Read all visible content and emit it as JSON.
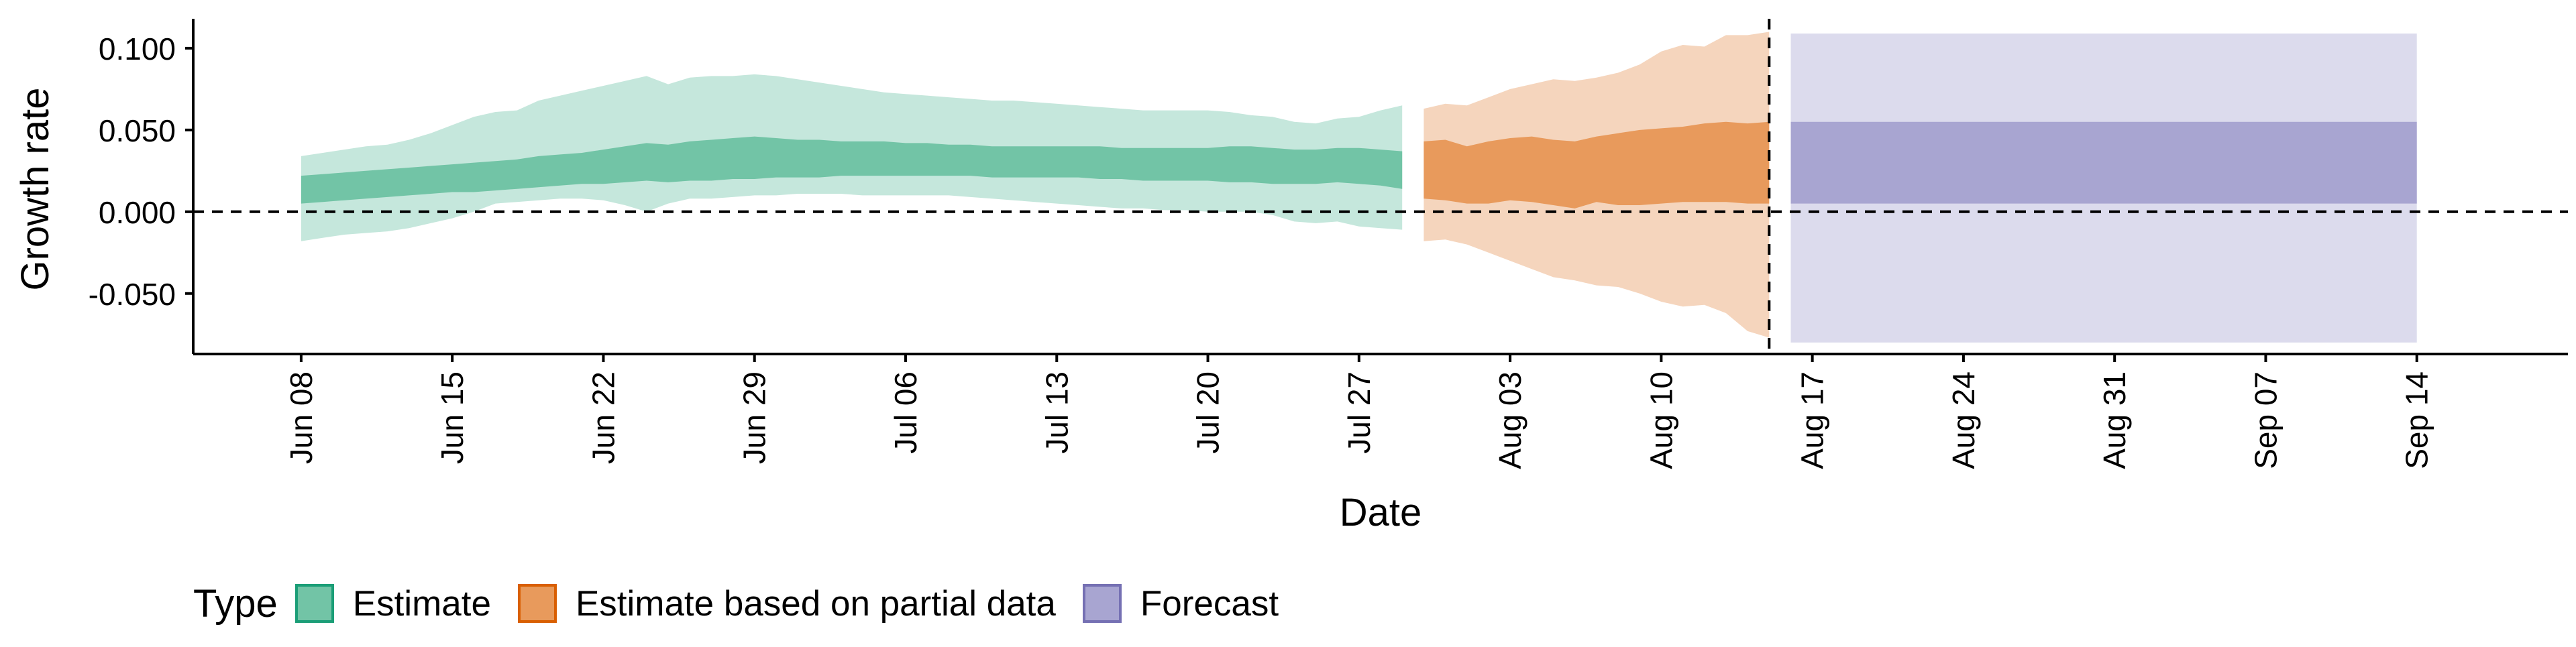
{
  "chart_data": {
    "type": "area",
    "xlabel": "Date",
    "ylabel": "Growth rate",
    "x_tick_labels": [
      "Jun 08",
      "Jun 15",
      "Jun 22",
      "Jun 29",
      "Jul 06",
      "Jul 13",
      "Jul 20",
      "Jul 27",
      "Aug 03",
      "Aug 10",
      "Aug 17",
      "Aug 24",
      "Aug 31",
      "Sep 07",
      "Sep 14"
    ],
    "x_tick_dates": [
      "2020-06-08",
      "2020-06-15",
      "2020-06-22",
      "2020-06-29",
      "2020-07-06",
      "2020-07-13",
      "2020-07-20",
      "2020-07-27",
      "2020-08-03",
      "2020-08-10",
      "2020-08-17",
      "2020-08-24",
      "2020-08-31",
      "2020-09-07",
      "2020-09-14"
    ],
    "y_tick_labels": [
      "-0.050",
      "0.000",
      "0.050",
      "0.100"
    ],
    "y_ticks": [
      -0.05,
      0.0,
      0.05,
      0.1
    ],
    "xlim": [
      "2020-06-03",
      "2020-09-21"
    ],
    "ylim": [
      -0.087,
      0.118
    ],
    "reference_lines": {
      "horizontal_y": 0.0,
      "vertical_date": "2020-08-15",
      "style": "dashed"
    },
    "legend": {
      "title": "Type",
      "position": "bottom",
      "items": [
        {
          "label": "Estimate",
          "fill": "#72c4a6",
          "border": "#1b9e77"
        },
        {
          "label": "Estimate based on partial data",
          "fill": "#e89a5c",
          "border": "#d95f02"
        },
        {
          "label": "Forecast",
          "fill": "#a8a5d1",
          "border": "#7570b3"
        }
      ]
    },
    "series": [
      {
        "name": "Estimate",
        "outer_color": "#c5e7dc",
        "inner_color": "#72c4a6",
        "dates": [
          "2020-06-08",
          "2020-06-09",
          "2020-06-10",
          "2020-06-11",
          "2020-06-12",
          "2020-06-13",
          "2020-06-14",
          "2020-06-15",
          "2020-06-16",
          "2020-06-17",
          "2020-06-18",
          "2020-06-19",
          "2020-06-20",
          "2020-06-21",
          "2020-06-22",
          "2020-06-23",
          "2020-06-24",
          "2020-06-25",
          "2020-06-26",
          "2020-06-27",
          "2020-06-28",
          "2020-06-29",
          "2020-06-30",
          "2020-07-01",
          "2020-07-02",
          "2020-07-03",
          "2020-07-04",
          "2020-07-05",
          "2020-07-06",
          "2020-07-07",
          "2020-07-08",
          "2020-07-09",
          "2020-07-10",
          "2020-07-11",
          "2020-07-12",
          "2020-07-13",
          "2020-07-14",
          "2020-07-15",
          "2020-07-16",
          "2020-07-17",
          "2020-07-18",
          "2020-07-19",
          "2020-07-20",
          "2020-07-21",
          "2020-07-22",
          "2020-07-23",
          "2020-07-24",
          "2020-07-25",
          "2020-07-26",
          "2020-07-27",
          "2020-07-28",
          "2020-07-29"
        ],
        "lower_90": [
          -0.018,
          -0.016,
          -0.014,
          -0.013,
          -0.012,
          -0.01,
          -0.007,
          -0.004,
          0.0,
          0.005,
          0.006,
          0.007,
          0.008,
          0.008,
          0.007,
          0.004,
          0.0,
          0.005,
          0.008,
          0.008,
          0.009,
          0.01,
          0.01,
          0.011,
          0.011,
          0.011,
          0.01,
          0.01,
          0.01,
          0.01,
          0.01,
          0.009,
          0.008,
          0.007,
          0.006,
          0.005,
          0.004,
          0.003,
          0.002,
          0.002,
          0.001,
          0.001,
          0.0,
          0.0,
          0.0,
          -0.002,
          -0.006,
          -0.007,
          -0.006,
          -0.009,
          -0.01,
          -0.011
        ],
        "upper_90": [
          0.034,
          0.036,
          0.038,
          0.04,
          0.041,
          0.044,
          0.048,
          0.053,
          0.058,
          0.061,
          0.062,
          0.068,
          0.071,
          0.074,
          0.077,
          0.08,
          0.083,
          0.078,
          0.082,
          0.083,
          0.083,
          0.084,
          0.083,
          0.081,
          0.079,
          0.077,
          0.075,
          0.073,
          0.072,
          0.071,
          0.07,
          0.069,
          0.068,
          0.068,
          0.067,
          0.066,
          0.065,
          0.064,
          0.063,
          0.062,
          0.062,
          0.062,
          0.062,
          0.061,
          0.059,
          0.058,
          0.055,
          0.054,
          0.057,
          0.058,
          0.062,
          0.065
        ],
        "lower_50": [
          0.005,
          0.006,
          0.007,
          0.008,
          0.009,
          0.01,
          0.011,
          0.012,
          0.012,
          0.013,
          0.014,
          0.015,
          0.016,
          0.017,
          0.017,
          0.018,
          0.019,
          0.018,
          0.019,
          0.019,
          0.02,
          0.02,
          0.021,
          0.021,
          0.021,
          0.022,
          0.022,
          0.022,
          0.022,
          0.022,
          0.022,
          0.022,
          0.021,
          0.021,
          0.021,
          0.021,
          0.021,
          0.02,
          0.02,
          0.019,
          0.019,
          0.019,
          0.019,
          0.018,
          0.018,
          0.017,
          0.017,
          0.017,
          0.018,
          0.017,
          0.016,
          0.014
        ],
        "upper_50": [
          0.022,
          0.023,
          0.024,
          0.025,
          0.026,
          0.027,
          0.028,
          0.029,
          0.03,
          0.031,
          0.032,
          0.034,
          0.035,
          0.036,
          0.038,
          0.04,
          0.042,
          0.041,
          0.043,
          0.044,
          0.045,
          0.046,
          0.045,
          0.044,
          0.044,
          0.043,
          0.043,
          0.043,
          0.042,
          0.042,
          0.041,
          0.041,
          0.04,
          0.04,
          0.04,
          0.04,
          0.04,
          0.04,
          0.039,
          0.039,
          0.039,
          0.039,
          0.039,
          0.04,
          0.04,
          0.039,
          0.038,
          0.038,
          0.039,
          0.039,
          0.038,
          0.037
        ]
      },
      {
        "name": "Estimate based on partial data",
        "outer_color": "#f5d5bd",
        "inner_color": "#e89a5c",
        "dates": [
          "2020-07-30",
          "2020-07-31",
          "2020-08-01",
          "2020-08-02",
          "2020-08-03",
          "2020-08-04",
          "2020-08-05",
          "2020-08-06",
          "2020-08-07",
          "2020-08-08",
          "2020-08-09",
          "2020-08-10",
          "2020-08-11",
          "2020-08-12",
          "2020-08-13",
          "2020-08-14",
          "2020-08-15"
        ],
        "lower_90": [
          -0.018,
          -0.017,
          -0.02,
          -0.025,
          -0.03,
          -0.035,
          -0.04,
          -0.042,
          -0.045,
          -0.046,
          -0.05,
          -0.055,
          -0.058,
          -0.057,
          -0.062,
          -0.073,
          -0.077
        ],
        "upper_90": [
          0.063,
          0.066,
          0.065,
          0.07,
          0.075,
          0.078,
          0.081,
          0.08,
          0.082,
          0.085,
          0.09,
          0.098,
          0.102,
          0.101,
          0.108,
          0.108,
          0.11
        ],
        "lower_50": [
          0.008,
          0.007,
          0.005,
          0.005,
          0.007,
          0.006,
          0.004,
          0.002,
          0.006,
          0.004,
          0.004,
          0.005,
          0.006,
          0.006,
          0.006,
          0.005,
          0.005
        ],
        "upper_50": [
          0.043,
          0.044,
          0.04,
          0.043,
          0.045,
          0.046,
          0.044,
          0.043,
          0.046,
          0.048,
          0.05,
          0.051,
          0.052,
          0.054,
          0.055,
          0.054,
          0.055
        ]
      },
      {
        "name": "Forecast",
        "outer_color": "#dcdbed",
        "inner_color": "#a8a5d1",
        "dates": [
          "2020-08-16",
          "2020-09-14"
        ],
        "lower_90": [
          -0.08,
          -0.08
        ],
        "upper_90": [
          0.109,
          0.109
        ],
        "lower_50": [
          0.005,
          0.005
        ],
        "upper_50": [
          0.055,
          0.055
        ]
      }
    ]
  }
}
